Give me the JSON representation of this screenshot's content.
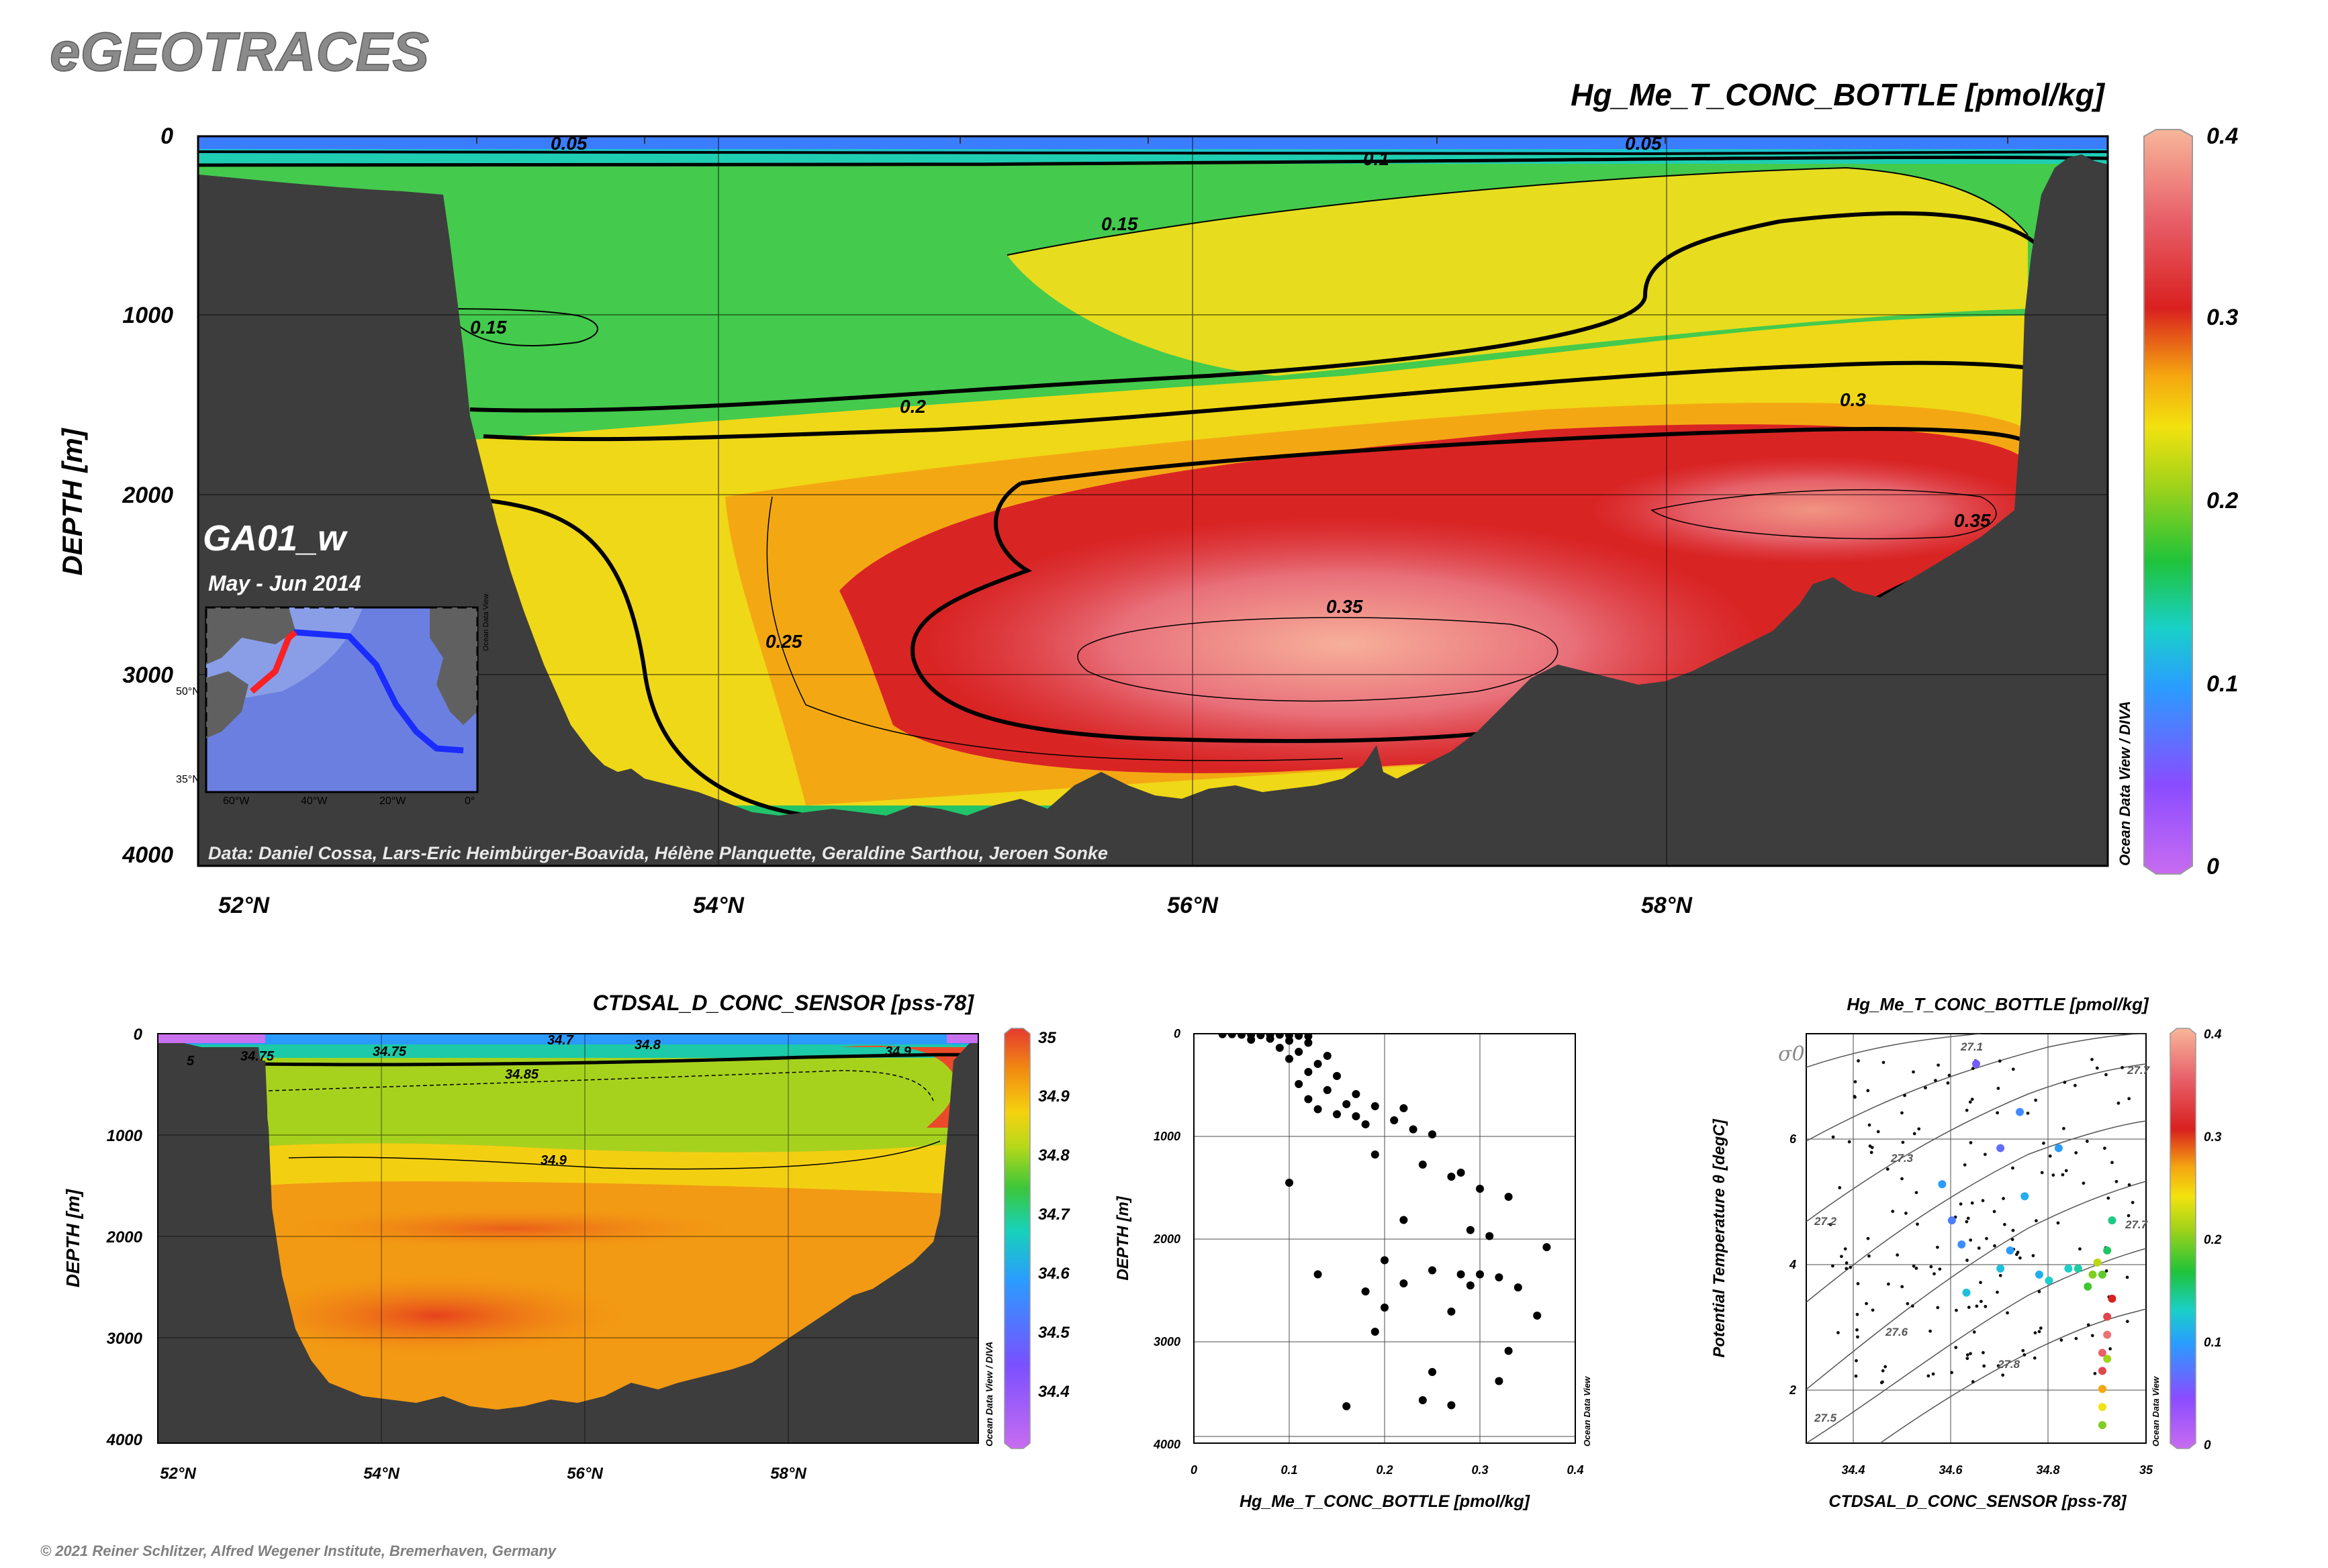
{
  "brand": "eGEOTRACES",
  "copyright": "© 2021 Reiner Schlitzer, Alfred Wegener Institute, Bremerhaven, Germany",
  "main_section": {
    "title": "Hg_Me_T_CONC_BOTTLE [pmol/kg]",
    "ylabel": "DEPTH [m]",
    "y_ticks": [
      "0",
      "1000",
      "2000",
      "3000",
      "4000"
    ],
    "x_ticks": [
      "52°N",
      "54°N",
      "56°N",
      "58°N"
    ],
    "cruise": "GA01_w",
    "period": "May - Jun 2014",
    "credits": "Data: Daniel Cossa, Lars-Eric Heimbürger-Boavida, Hélène Planquette, Geraldine Sarthou, Jeroen Sonke",
    "watermark": "Ocean Data View / DIVA",
    "colorbar_ticks": [
      "0.4",
      "0.3",
      "0.2",
      "0.1",
      "0"
    ],
    "contour_labels": [
      "0.05",
      "0.1",
      "0.05",
      "0.15",
      "0.15",
      "0.2",
      "0.3",
      "0.35",
      "0.35",
      "0.25"
    ],
    "inset_map": {
      "lat_labels": [
        "50°N",
        "35°N"
      ],
      "lon_labels": [
        "60°W",
        "40°W",
        "20°W",
        "0°"
      ],
      "watermark": "Ocean Data View"
    }
  },
  "salinity_section": {
    "title": "CTDSAL_D_CONC_SENSOR [pss-78]",
    "ylabel": "DEPTH [m]",
    "y_ticks": [
      "0",
      "1000",
      "2000",
      "3000",
      "4000"
    ],
    "x_ticks": [
      "52°N",
      "54°N",
      "56°N",
      "58°N"
    ],
    "watermark": "Ocean Data View / DIVA",
    "colorbar_ticks": [
      "35",
      "34.9",
      "34.8",
      "34.7",
      "34.6",
      "34.5",
      "34.4"
    ],
    "contour_labels": [
      "34.75",
      "34.7",
      "34.8",
      "34.85",
      "34.9",
      "34.9",
      "34.75",
      "5"
    ]
  },
  "profile": {
    "xlabel": "Hg_Me_T_CONC_BOTTLE [pmol/kg]",
    "ylabel": "DEPTH [m]",
    "x_ticks": [
      "0",
      "0.1",
      "0.2",
      "0.3",
      "0.4"
    ],
    "y_ticks": [
      "0",
      "1000",
      "2000",
      "3000",
      "4000"
    ],
    "watermark": "Ocean Data View"
  },
  "ts_plot": {
    "title": "Hg_Me_T_CONC_BOTTLE [pmol/kg]",
    "xlabel": "CTDSAL_D_CONC_SENSOR [pss-78]",
    "ylabel": "Potential Temperature θ [degC]",
    "x_ticks": [
      "34.4",
      "34.6",
      "34.8",
      "35"
    ],
    "y_ticks": [
      "2",
      "4",
      "6"
    ],
    "sigma_label": "σ0",
    "isopycnal_labels": [
      "27.1",
      "27.2",
      "27.3",
      "27.5",
      "27.6",
      "27.7",
      "27.8",
      "27.7"
    ],
    "watermark": "Ocean Data View",
    "colorbar_ticks": [
      "0.4",
      "0.3",
      "0.2",
      "0.1",
      "0"
    ]
  },
  "chart_data": [
    {
      "type": "heatmap",
      "title": "Hg_Me_T_CONC_BOTTLE [pmol/kg]",
      "xlabel": "",
      "ylabel": "DEPTH [m]",
      "xlim_latN": [
        51.8,
        59.8
      ],
      "ylim_m": [
        4000,
        0
      ],
      "color_range": [
        0,
        0.4
      ],
      "colorscale": "rainbow violet-blue-cyan-green-yellow-orange-red-salmon",
      "contours": [
        0.05,
        0.1,
        0.15,
        0.2,
        0.25,
        0.3,
        0.35
      ],
      "sample_grid_lat": [
        52.2,
        53.5,
        54.5,
        55.5,
        56.5,
        57.5,
        58.5,
        59.3
      ],
      "sample_grid_depth_m": [
        100,
        500,
        1000,
        1500,
        2000,
        2500,
        3000,
        3500
      ],
      "sample_values": [
        [
          0.1,
          0.09,
          0.1,
          0.1,
          0.1,
          0.09,
          0.08,
          0.1
        ],
        [
          null,
          0.14,
          0.15,
          0.16,
          0.18,
          0.2,
          0.2,
          0.18
        ],
        [
          null,
          0.16,
          0.17,
          0.18,
          0.19,
          0.2,
          0.21,
          0.19
        ],
        [
          null,
          0.19,
          0.2,
          0.23,
          0.26,
          0.28,
          0.3,
          0.31
        ],
        [
          null,
          0.16,
          0.22,
          0.3,
          0.33,
          0.34,
          0.36,
          0.33
        ],
        [
          null,
          0.15,
          0.24,
          0.31,
          0.34,
          0.36,
          0.33,
          null
        ],
        [
          null,
          null,
          0.22,
          0.31,
          0.37,
          0.37,
          null,
          null
        ],
        [
          null,
          null,
          0.2,
          0.29,
          null,
          null,
          null,
          null
        ]
      ]
    },
    {
      "type": "heatmap",
      "title": "CTDSAL_D_CONC_SENSOR [pss-78]",
      "xlabel": "",
      "ylabel": "DEPTH [m]",
      "xlim_latN": [
        51.8,
        59.8
      ],
      "ylim_m": [
        4000,
        0
      ],
      "color_range": [
        34.3,
        35.0
      ],
      "contours": [
        34.75,
        34.8,
        34.85,
        34.9
      ]
    },
    {
      "type": "scatter",
      "title": "",
      "xlabel": "Hg_Me_T_CONC_BOTTLE [pmol/kg]",
      "ylabel": "DEPTH [m]",
      "xlim": [
        0,
        0.4
      ],
      "ylim": [
        4000,
        0
      ],
      "x": [
        0.03,
        0.04,
        0.05,
        0.06,
        0.07,
        0.08,
        0.09,
        0.1,
        0.11,
        0.12,
        0.06,
        0.08,
        0.1,
        0.12,
        0.09,
        0.11,
        0.14,
        0.1,
        0.13,
        0.12,
        0.15,
        0.11,
        0.14,
        0.17,
        0.12,
        0.16,
        0.19,
        0.22,
        0.13,
        0.15,
        0.17,
        0.21,
        0.18,
        0.23,
        0.25,
        0.1,
        0.19,
        0.24,
        0.28,
        0.27,
        0.3,
        0.33,
        0.22,
        0.29,
        0.31,
        0.37,
        0.2,
        0.25,
        0.28,
        0.3,
        0.32,
        0.13,
        0.22,
        0.29,
        0.34,
        0.18,
        0.2,
        0.27,
        0.36,
        0.33,
        0.19,
        0.25,
        0.32,
        0.24,
        0.16,
        0.27
      ],
      "y": [
        5,
        5,
        10,
        10,
        15,
        10,
        10,
        15,
        20,
        25,
        60,
        50,
        70,
        90,
        140,
        180,
        220,
        250,
        300,
        380,
        420,
        500,
        560,
        600,
        650,
        700,
        720,
        740,
        750,
        800,
        820,
        860,
        900,
        950,
        1000,
        1480,
        1200,
        1300,
        1380,
        1420,
        1540,
        1620,
        1850,
        1950,
        2010,
        2120,
        2250,
        2350,
        2390,
        2390,
        2420,
        2390,
        2480,
        2500,
        2520,
        2560,
        2720,
        2760,
        2800,
        3150,
        2960,
        3360,
        3450,
        3640,
        3700,
        3690
      ],
      "markers": "black filled circles"
    },
    {
      "type": "scatter",
      "title": "Hg_Me_T_CONC_BOTTLE [pmol/kg]",
      "xlabel": "CTDSAL_D_CONC_SENSOR [pss-78]",
      "ylabel": "Potential Temperature θ [degC]",
      "xlim": [
        34.3,
        35.0
      ],
      "ylim": [
        1,
        7.8
      ],
      "color_var": "Hg_Me_T_CONC_BOTTLE",
      "color_range": [
        0,
        0.4
      ],
      "points": [
        {
          "s": 34.58,
          "t": 5.3,
          "v": 0.1
        },
        {
          "s": 34.6,
          "t": 4.7,
          "v": 0.08
        },
        {
          "s": 34.62,
          "t": 4.3,
          "v": 0.09
        },
        {
          "s": 34.63,
          "t": 3.5,
          "v": 0.12
        },
        {
          "s": 34.65,
          "t": 7.3,
          "v": 0.06
        },
        {
          "s": 34.7,
          "t": 5.9,
          "v": 0.07
        },
        {
          "s": 34.7,
          "t": 3.9,
          "v": 0.12
        },
        {
          "s": 34.72,
          "t": 4.2,
          "v": 0.1
        },
        {
          "s": 34.74,
          "t": 6.5,
          "v": 0.09
        },
        {
          "s": 34.75,
          "t": 5.1,
          "v": 0.11
        },
        {
          "s": 34.78,
          "t": 3.8,
          "v": 0.11
        },
        {
          "s": 34.8,
          "t": 3.7,
          "v": 0.13
        },
        {
          "s": 34.82,
          "t": 5.9,
          "v": 0.1
        },
        {
          "s": 34.84,
          "t": 3.9,
          "v": 0.13
        },
        {
          "s": 34.86,
          "t": 3.9,
          "v": 0.14
        },
        {
          "s": 34.88,
          "t": 3.6,
          "v": 0.18
        },
        {
          "s": 34.89,
          "t": 3.8,
          "v": 0.2
        },
        {
          "s": 34.9,
          "t": 4.0,
          "v": 0.22
        },
        {
          "s": 34.91,
          "t": 3.8,
          "v": 0.19
        },
        {
          "s": 34.92,
          "t": 4.2,
          "v": 0.16
        },
        {
          "s": 34.93,
          "t": 4.7,
          "v": 0.15
        },
        {
          "s": 34.93,
          "t": 3.4,
          "v": 0.3
        },
        {
          "s": 34.92,
          "t": 3.1,
          "v": 0.33
        },
        {
          "s": 34.92,
          "t": 2.8,
          "v": 0.36
        },
        {
          "s": 34.91,
          "t": 2.5,
          "v": 0.35
        },
        {
          "s": 34.91,
          "t": 2.2,
          "v": 0.33
        },
        {
          "s": 34.91,
          "t": 1.9,
          "v": 0.27
        },
        {
          "s": 34.91,
          "t": 1.6,
          "v": 0.24
        },
        {
          "s": 34.91,
          "t": 1.3,
          "v": 0.2
        },
        {
          "s": 34.92,
          "t": 2.4,
          "v": 0.21
        }
      ]
    }
  ]
}
